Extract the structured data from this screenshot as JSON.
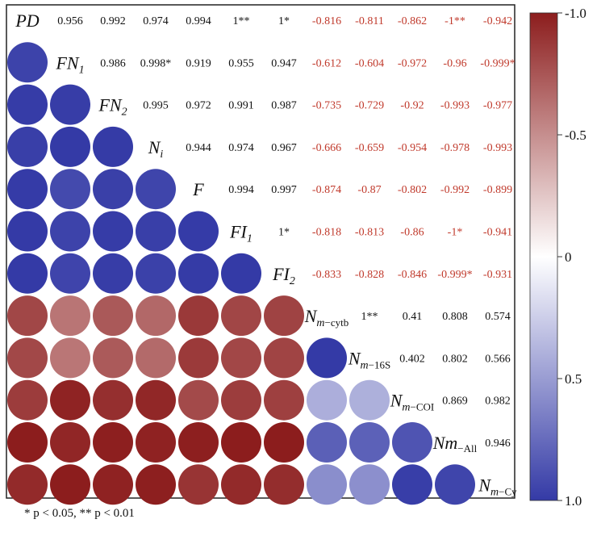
{
  "chart_data": {
    "type": "heatmap",
    "title": "",
    "variables": [
      {
        "id": "PD",
        "main": "PD",
        "sub": "",
        "sub_italic": false
      },
      {
        "id": "FN1",
        "main": "FN",
        "sub": "1",
        "sub_italic": true
      },
      {
        "id": "FN2",
        "main": "FN",
        "sub": "2",
        "sub_italic": true
      },
      {
        "id": "Ni",
        "main": "N",
        "sub": "i",
        "sub_italic": true
      },
      {
        "id": "F",
        "main": "F",
        "sub": "",
        "sub_italic": false
      },
      {
        "id": "FI1",
        "main": "FI",
        "sub": "1",
        "sub_italic": true
      },
      {
        "id": "FI2",
        "main": "FI",
        "sub": "2",
        "sub_italic": true
      },
      {
        "id": "Nm-cytb",
        "main": "N",
        "sub": "m",
        "suffix": "−cytb",
        "sub_italic": true
      },
      {
        "id": "Nm-16S",
        "main": "N",
        "sub": "m",
        "suffix": "−16S",
        "sub_italic": true
      },
      {
        "id": "Nm-COI",
        "main": "N",
        "sub": "m",
        "suffix": "−COI",
        "sub_italic": true
      },
      {
        "id": "Nm-All",
        "main": "Nm",
        "sub": "",
        "suffix": "−All",
        "sub_italic": false
      },
      {
        "id": "Nm-Cy",
        "main": "N",
        "sub": "m",
        "suffix": "−Cy",
        "sub_italic": true
      }
    ],
    "upper_labels": [
      [
        "0.956",
        "0.992",
        "0.974",
        "0.994",
        "1**",
        "1*",
        "-0.816",
        "-0.811",
        "-0.862",
        "-1**",
        "-0.942"
      ],
      [
        "0.986",
        "0.998*",
        "0.919",
        "0.955",
        "0.947",
        "-0.612",
        "-0.604",
        "-0.972",
        "-0.96",
        "-0.999*"
      ],
      [
        "0.995",
        "0.972",
        "0.991",
        "0.987",
        "-0.735",
        "-0.729",
        "-0.92",
        "-0.993",
        "-0.977"
      ],
      [
        "0.944",
        "0.974",
        "0.967",
        "-0.666",
        "-0.659",
        "-0.954",
        "-0.978",
        "-0.993"
      ],
      [
        "0.994",
        "0.997",
        "-0.874",
        "-0.87",
        "-0.802",
        "-0.992",
        "-0.899"
      ],
      [
        "1*",
        "-0.818",
        "-0.813",
        "-0.86",
        "-1*",
        "-0.941"
      ],
      [
        "-0.833",
        "-0.828",
        "-0.846",
        "-0.999*",
        "-0.931"
      ],
      [
        "1**",
        "0.41",
        "0.808",
        "0.574"
      ],
      [
        "0.402",
        "0.802",
        "0.566"
      ],
      [
        "0.869",
        "0.982"
      ],
      [
        "0.946"
      ]
    ],
    "colorbar": {
      "min": -1.0,
      "max": 1.0,
      "top_color": "#8c1d1d",
      "middle_color": "#ffffff",
      "bottom_color": "#343aa6",
      "tick_labels": [
        "-1.0",
        "-0.5",
        "0",
        "0.5",
        "1.0"
      ]
    },
    "colors": {
      "positive_text": "#111111",
      "negative_text": "#c0392b"
    }
  },
  "footnote": "* p < 0.05, ** p < 0.01"
}
